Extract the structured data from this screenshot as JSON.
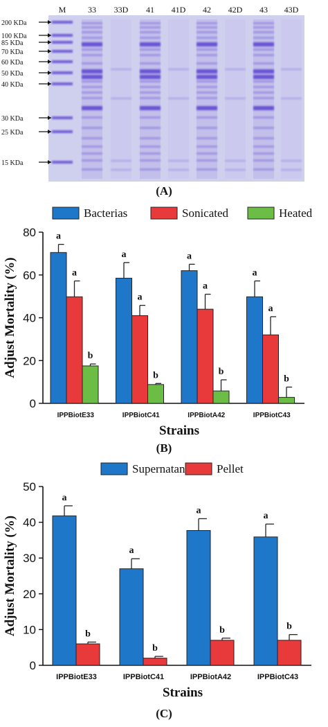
{
  "panels": {
    "a": "(A)",
    "b": "(B)",
    "c": "(C)"
  },
  "gel": {
    "lane_labels": [
      "M",
      "33",
      "33D",
      "41",
      "41D",
      "42",
      "42D",
      "43",
      "43D"
    ],
    "marker_labels": [
      "200 KDa",
      "100 KDa",
      "85 KDa",
      "70 KDa",
      "60 KDa",
      "50 KDa",
      "40 KDa",
      "30 KDa",
      "25 KDa",
      "15 KDa"
    ],
    "colors": {
      "gel_background": "#cfcfee",
      "band": "#5a3fd0"
    }
  },
  "chart_data": [
    {
      "type": "bar",
      "categories": [
        "IPPBiotE33",
        "IPPBiotC41",
        "IPPBiotA42",
        "IPPBiotC43"
      ],
      "series": [
        {
          "name": "Bacterias",
          "values": [
            70.5,
            58.5,
            62.0,
            49.8
          ],
          "errors": [
            3.8,
            7.3,
            3.0,
            7.4
          ],
          "letters": [
            "a",
            "a",
            "a",
            "a"
          ],
          "color": "#1f77c9"
        },
        {
          "name": "Sonicated",
          "values": [
            49.8,
            41.0,
            44.0,
            32.0
          ],
          "errors": [
            7.4,
            4.8,
            7.0,
            8.5
          ],
          "letters": [
            "a",
            "a",
            "a",
            "a"
          ],
          "color": "#e83a3a"
        },
        {
          "name": "Heated",
          "values": [
            17.5,
            8.8,
            5.8,
            2.8
          ],
          "errors": [
            0.9,
            0.5,
            5.2,
            4.8
          ],
          "letters": [
            "b",
            "b",
            "b",
            "b"
          ],
          "color": "#6cbd45"
        }
      ],
      "xlabel": "Strains",
      "ylabel": "Adjust Mortality (%)",
      "ylim": [
        0,
        80
      ],
      "yticks": [
        "0",
        "20",
        "40",
        "60",
        "80"
      ],
      "legend_position": "top",
      "grid": false
    },
    {
      "type": "bar",
      "categories": [
        "IPPBiotE33",
        "IPPBiotC41",
        "IPPBiotA42",
        "IPPBiotC43"
      ],
      "series": [
        {
          "name": "Supernatant",
          "values": [
            41.8,
            27.0,
            37.7,
            35.9
          ],
          "errors": [
            2.8,
            2.8,
            3.3,
            3.6
          ],
          "letters": [
            "a",
            "a",
            "a",
            "a"
          ],
          "color": "#1f77c9"
        },
        {
          "name": "Pellet",
          "values": [
            6.0,
            2.0,
            7.0,
            7.0
          ],
          "errors": [
            0.5,
            0.5,
            0.6,
            1.6
          ],
          "letters": [
            "b",
            "b",
            "b",
            "b"
          ],
          "color": "#e83a3a"
        }
      ],
      "xlabel": "Strains",
      "ylabel": "Adjust Mortality (%)",
      "ylim": [
        0,
        50
      ],
      "yticks": [
        "0",
        "10",
        "20",
        "30",
        "40",
        "50"
      ],
      "legend_position": "top",
      "grid": false
    }
  ]
}
